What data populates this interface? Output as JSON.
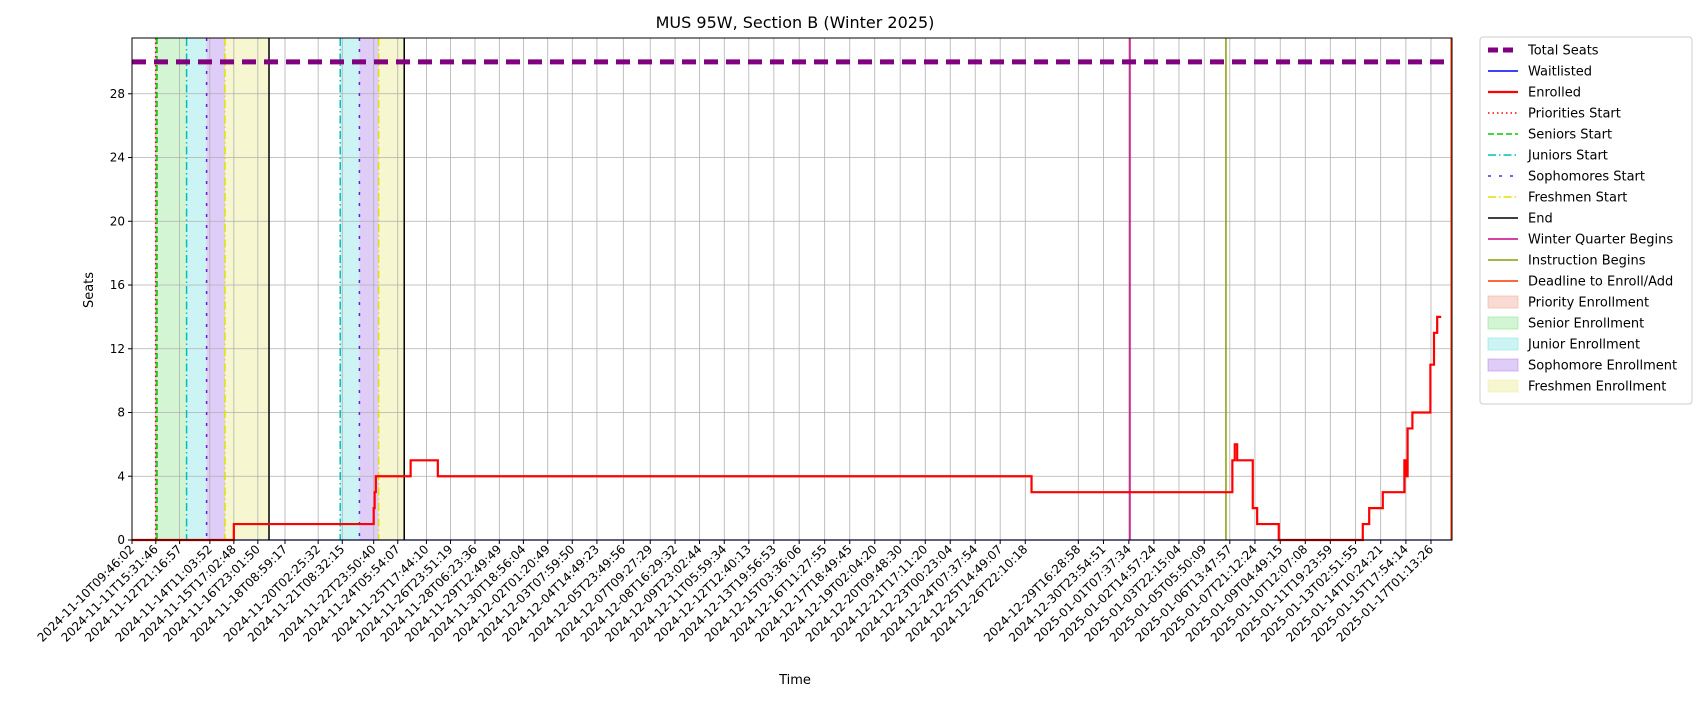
{
  "chart_data": {
    "type": "line",
    "title": "MUS 95W, Section B (Winter 2025)",
    "xlabel": "Time",
    "ylabel": "Seats",
    "ylim": [
      0,
      31.5
    ],
    "yticks": [
      0,
      4,
      8,
      12,
      16,
      20,
      24,
      28
    ],
    "xlim": [
      "2024-11-10T09:46:02",
      "2025-01-18T03:30:00"
    ],
    "grid": true,
    "legend_position": "outside-right",
    "x_ticks": [
      "2024-11-10T09:46:02",
      "2024-11-11T15:31:46",
      "2024-11-12T21:16:57",
      "2024-11-14T11:03:52",
      "2024-11-15T17:02:48",
      "2024-11-16T23:01:50",
      "2024-11-18T08:59:17",
      "2024-11-20T02:25:32",
      "2024-11-21T08:32:15",
      "2024-11-22T23:50:40",
      "2024-11-24T05:54:07",
      "2024-11-25T17:44:10",
      "2024-11-26T23:51:19",
      "2024-11-28T06:23:36",
      "2024-11-29T12:49:49",
      "2024-11-30T18:56:04",
      "2024-12-02T01:20:49",
      "2024-12-03T07:59:50",
      "2024-12-04T14:49:23",
      "2024-12-05T23:49:56",
      "2024-12-07T09:27:29",
      "2024-12-08T16:29:32",
      "2024-12-09T23:02:44",
      "2024-12-11T05:59:34",
      "2024-12-12T12:40:13",
      "2024-12-13T19:56:53",
      "2024-12-15T03:36:06",
      "2024-12-16T11:27:55",
      "2024-12-17T18:49:45",
      "2024-12-19T02:04:20",
      "2024-12-20T09:48:30",
      "2024-12-21T17:11:20",
      "2024-12-23T00:23:04",
      "2024-12-24T07:37:54",
      "2024-12-25T14:49:07",
      "2024-12-26T22:10:18",
      "2024-12-29T16:28:58",
      "2024-12-30T23:54:51",
      "2025-01-01T07:37:34",
      "2025-01-02T14:57:24",
      "2025-01-03T22:15:04",
      "2025-01-05T05:50:09",
      "2025-01-06T13:47:57",
      "2025-01-07T21:12:24",
      "2025-01-09T04:49:15",
      "2025-01-10T12:07:08",
      "2025-01-11T19:23:59",
      "2025-01-13T02:51:55",
      "2025-01-14T10:24:21",
      "2025-01-15T17:54:14",
      "2025-01-17T01:13:26"
    ],
    "series": [
      {
        "name": "Total Seats",
        "color": "#800080",
        "style": "dashed-thick",
        "x": [
          "2024-11-10T09:46:02",
          "2025-01-18T03:30:00"
        ],
        "y": [
          30,
          30
        ]
      },
      {
        "name": "Waitlisted",
        "color": "#0000ff",
        "style": "solid",
        "x": [
          "2024-11-10T09:46:02",
          "2025-01-18T03:30:00"
        ],
        "y": [
          0,
          0
        ]
      },
      {
        "name": "Enrolled",
        "color": "#ff0000",
        "style": "step",
        "x": [
          "2024-11-10T09:46:02",
          "2024-11-15T17:02:48",
          "2024-11-22T23:50:40",
          "2024-11-23T01:00:00",
          "2024-11-23T02:30:00",
          "2024-11-23T21:00:00",
          "2024-11-24T22:00:00",
          "2024-11-26T08:00:00",
          "2024-12-27T06:00:00",
          "2025-01-06T06:00:00",
          "2025-01-06T17:00:00",
          "2025-01-06T20:00:00",
          "2025-01-06T23:00:00",
          "2025-01-07T04:00:00",
          "2025-01-07T18:30:00",
          "2025-01-08T00:00:00",
          "2025-01-09T03:00:00",
          "2025-01-13T07:00:00",
          "2025-01-13T12:00:00",
          "2025-01-13T20:00:00",
          "2025-01-14T13:00:00",
          "2025-01-15T16:00:00",
          "2025-01-15T18:00:00",
          "2025-01-15T20:00:00",
          "2025-01-16T02:00:00",
          "2025-01-17T00:30:00",
          "2025-01-17T05:00:00",
          "2025-01-17T09:00:00",
          "2025-01-17T14:00:00"
        ],
        "y": [
          0,
          1,
          2,
          3,
          4,
          4,
          5,
          4,
          3,
          3,
          5,
          6,
          5,
          5,
          2,
          1,
          0,
          0,
          1,
          2,
          3,
          5,
          4,
          7,
          8,
          11,
          13,
          14,
          14
        ]
      }
    ],
    "vertical_lines": [
      {
        "name": "Priorities Start",
        "color": "#ff0000",
        "style": "dotted",
        "x": [
          "2024-11-11T15:20:00"
        ]
      },
      {
        "name": "Seniors Start",
        "color": "#00cc00",
        "style": "dashed",
        "x": [
          "2024-11-11T17:00:00"
        ]
      },
      {
        "name": "Juniors Start",
        "color": "#00bfbf",
        "style": "dashdot",
        "x": [
          "2024-11-13T06:00:00",
          "2024-11-21T06:00:00"
        ]
      },
      {
        "name": "Sophomores Start",
        "color": "#6a1bd8",
        "style": "loosedash",
        "x": [
          "2024-11-14T07:00:00",
          "2024-11-22T06:00:00"
        ]
      },
      {
        "name": "Freshmen Start",
        "color": "#e0e000",
        "style": "dashdot",
        "x": [
          "2024-11-15T06:00:00",
          "2024-11-23T06:00:00"
        ]
      },
      {
        "name": "End",
        "color": "#000000",
        "style": "solid",
        "x": [
          "2024-11-17T13:00:00",
          "2024-11-24T14:00:00"
        ]
      },
      {
        "name": "Winter Quarter Begins",
        "color": "#cc0088",
        "style": "solid",
        "x": [
          "2025-01-01T09:00:00"
        ]
      },
      {
        "name": "Instruction Begins",
        "color": "#88a000",
        "style": "solid",
        "x": [
          "2025-01-06T09:00:00"
        ]
      },
      {
        "name": "Deadline to Enroll/Add",
        "color": "#ff3300",
        "style": "solid",
        "x": [
          "2025-01-18T02:30:00"
        ]
      }
    ],
    "shaded_regions": [
      {
        "name": "Priority Enrollment",
        "color": "#f4b0a0",
        "alpha": 0.45,
        "ranges": [
          [
            "2024-11-11T15:20:00",
            "2024-11-11T17:00:00"
          ]
        ]
      },
      {
        "name": "Senior Enrollment",
        "color": "#90e690",
        "alpha": 0.4,
        "ranges": [
          [
            "2024-11-11T17:00:00",
            "2024-11-13T06:00:00"
          ]
        ]
      },
      {
        "name": "Junior Enrollment",
        "color": "#90e6e6",
        "alpha": 0.45,
        "ranges": [
          [
            "2024-11-13T06:00:00",
            "2024-11-14T07:00:00"
          ],
          [
            "2024-11-21T06:00:00",
            "2024-11-22T06:00:00"
          ]
        ]
      },
      {
        "name": "Sophomore Enrollment",
        "color": "#b890f0",
        "alpha": 0.45,
        "ranges": [
          [
            "2024-11-14T07:00:00",
            "2024-11-15T06:00:00"
          ],
          [
            "2024-11-22T06:00:00",
            "2024-11-23T06:00:00"
          ]
        ]
      },
      {
        "name": "Freshmen Enrollment",
        "color": "#f0f0b0",
        "alpha": 0.6,
        "ranges": [
          [
            "2024-11-15T06:00:00",
            "2024-11-17T13:00:00"
          ],
          [
            "2024-11-23T06:00:00",
            "2024-11-24T14:00:00"
          ]
        ]
      }
    ]
  }
}
